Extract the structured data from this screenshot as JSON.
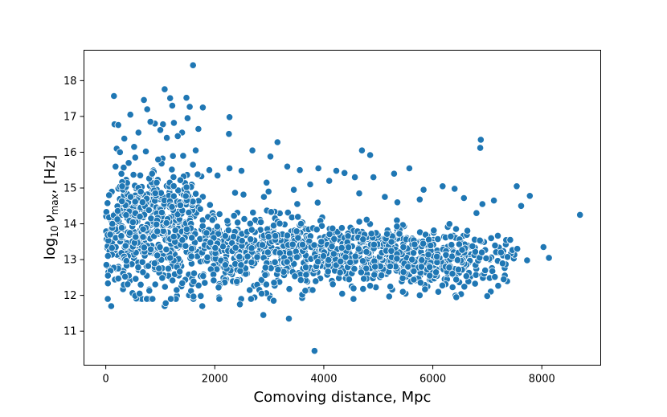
{
  "chart_data": {
    "type": "scatter",
    "title": "",
    "xlabel": "Comoving distance, Mpc",
    "ylabel_parts": {
      "base": "log",
      "base_sub": "10",
      "symbol": "ν",
      "symbol_sub": "max",
      "suffix": ", [Hz]"
    },
    "xlim": [
      -400,
      9080
    ],
    "ylim": [
      10.05,
      18.85
    ],
    "xticks": [
      0,
      2000,
      4000,
      6000,
      8000
    ],
    "xtick_labels": [
      "0",
      "2000",
      "4000",
      "6000",
      "8000"
    ],
    "yticks": [
      11,
      12,
      13,
      14,
      15,
      16,
      17,
      18
    ],
    "ytick_labels": [
      "11",
      "12",
      "13",
      "14",
      "15",
      "16",
      "17",
      "18"
    ],
    "grid": false,
    "legend": "none",
    "marker_color": "#1f77b4",
    "marker_edge_color": "#ffffff",
    "points": [
      [
        1600,
        18.43
      ],
      [
        1080,
        17.76
      ],
      [
        150,
        17.57
      ],
      [
        1180,
        17.51
      ],
      [
        1480,
        17.52
      ],
      [
        700,
        17.46
      ],
      [
        1220,
        17.3
      ],
      [
        1540,
        17.27
      ],
      [
        1780,
        17.25
      ],
      [
        760,
        17.2
      ],
      [
        450,
        17.05
      ],
      [
        2270,
        16.98
      ],
      [
        1500,
        16.95
      ],
      [
        160,
        16.78
      ],
      [
        230,
        16.76
      ],
      [
        900,
        16.8
      ],
      [
        1050,
        16.78
      ],
      [
        1250,
        16.82
      ],
      [
        1700,
        16.65
      ],
      [
        2260,
        16.51
      ],
      [
        820,
        16.85
      ],
      [
        600,
        16.55
      ],
      [
        1000,
        16.62
      ],
      [
        1400,
        16.55
      ],
      [
        3150,
        16.28
      ],
      [
        6880,
        16.35
      ],
      [
        340,
        16.38
      ],
      [
        1120,
        16.4
      ],
      [
        1320,
        16.45
      ],
      [
        6870,
        16.12
      ],
      [
        4700,
        16.05
      ],
      [
        2690,
        16.05
      ],
      [
        200,
        16.1
      ],
      [
        520,
        16.15
      ],
      [
        1650,
        16.05
      ],
      [
        4850,
        15.92
      ],
      [
        3020,
        15.88
      ],
      [
        3330,
        15.6
      ],
      [
        3900,
        15.55
      ],
      [
        4230,
        15.48
      ],
      [
        4910,
        15.3
      ],
      [
        5290,
        15.4
      ],
      [
        5570,
        15.55
      ],
      [
        6400,
        14.98
      ],
      [
        6180,
        15.05
      ],
      [
        7540,
        15.05
      ],
      [
        5830,
        14.95
      ],
      [
        4100,
        15.2
      ],
      [
        4570,
        15.3
      ],
      [
        3560,
        15.5
      ],
      [
        2490,
        15.48
      ],
      [
        2270,
        15.55
      ],
      [
        5760,
        14.68
      ],
      [
        6570,
        14.72
      ],
      [
        7120,
        14.65
      ],
      [
        7780,
        14.78
      ],
      [
        7620,
        14.5
      ],
      [
        8700,
        14.25
      ],
      [
        8030,
        13.35
      ],
      [
        8130,
        13.05
      ],
      [
        7730,
        12.98
      ],
      [
        7300,
        12.45
      ],
      [
        7550,
        13.3
      ],
      [
        7420,
        13.55
      ],
      [
        7250,
        13.2
      ],
      [
        100,
        11.7
      ],
      [
        1080,
        11.7
      ],
      [
        1770,
        11.7
      ],
      [
        3360,
        11.35
      ],
      [
        3830,
        10.45
      ],
      [
        2890,
        11.45
      ],
      [
        2460,
        11.75
      ],
      [
        1610,
        11.97
      ],
      [
        2860,
        12.05
      ],
      [
        3080,
        11.85
      ],
      [
        5200,
        11.97
      ],
      [
        5760,
        12.0
      ],
      [
        6430,
        11.95
      ],
      [
        6100,
        12.1
      ],
      [
        6960,
        12.7
      ],
      [
        6900,
        13.2
      ],
      [
        7070,
        13.6
      ],
      [
        6910,
        14.55
      ],
      [
        6800,
        14.3
      ],
      [
        5450,
        12.1
      ],
      [
        4720,
        12.18
      ],
      [
        3660,
        12.13
      ],
      [
        2640,
        12.15
      ],
      [
        2070,
        12.22
      ],
      [
        1300,
        12.15
      ],
      [
        620,
        12.05
      ],
      [
        1100,
        11.78
      ],
      [
        40,
        12.55
      ],
      [
        40,
        13.1
      ],
      [
        60,
        14.8
      ],
      [
        80,
        13.7
      ],
      [
        120,
        14.0
      ],
      [
        300,
        15.05
      ],
      [
        180,
        15.6
      ],
      [
        260,
        16.0
      ],
      [
        420,
        15.7
      ],
      [
        540,
        15.85
      ],
      [
        850,
        15.4
      ],
      [
        1420,
        15.9
      ],
      [
        1900,
        15.5
      ],
      [
        2050,
        15.35
      ],
      [
        2950,
        15.15
      ],
      [
        3450,
        14.95
      ],
      [
        3750,
        15.1
      ],
      [
        4380,
        15.42
      ],
      [
        4650,
        14.85
      ],
      [
        5120,
        14.75
      ],
      [
        5350,
        14.6
      ]
    ],
    "clusters": [
      {
        "n": 360,
        "x": [
          0,
          1800
        ],
        "y_mean": 13.5,
        "y_sd": 0.78
      },
      {
        "n": 220,
        "x": [
          200,
          1600
        ],
        "y_mean": 14.5,
        "y_sd": 0.55
      },
      {
        "n": 420,
        "x": [
          1800,
          3800
        ],
        "y_mean": 13.25,
        "y_sd": 0.52
      },
      {
        "n": 380,
        "x": [
          3800,
          5600
        ],
        "y_mean": 13.15,
        "y_sd": 0.42
      },
      {
        "n": 220,
        "x": [
          5600,
          6800
        ],
        "y_mean": 13.05,
        "y_sd": 0.38
      },
      {
        "n": 40,
        "x": [
          6800,
          7500
        ],
        "y_mean": 13.0,
        "y_sd": 0.45
      }
    ]
  }
}
